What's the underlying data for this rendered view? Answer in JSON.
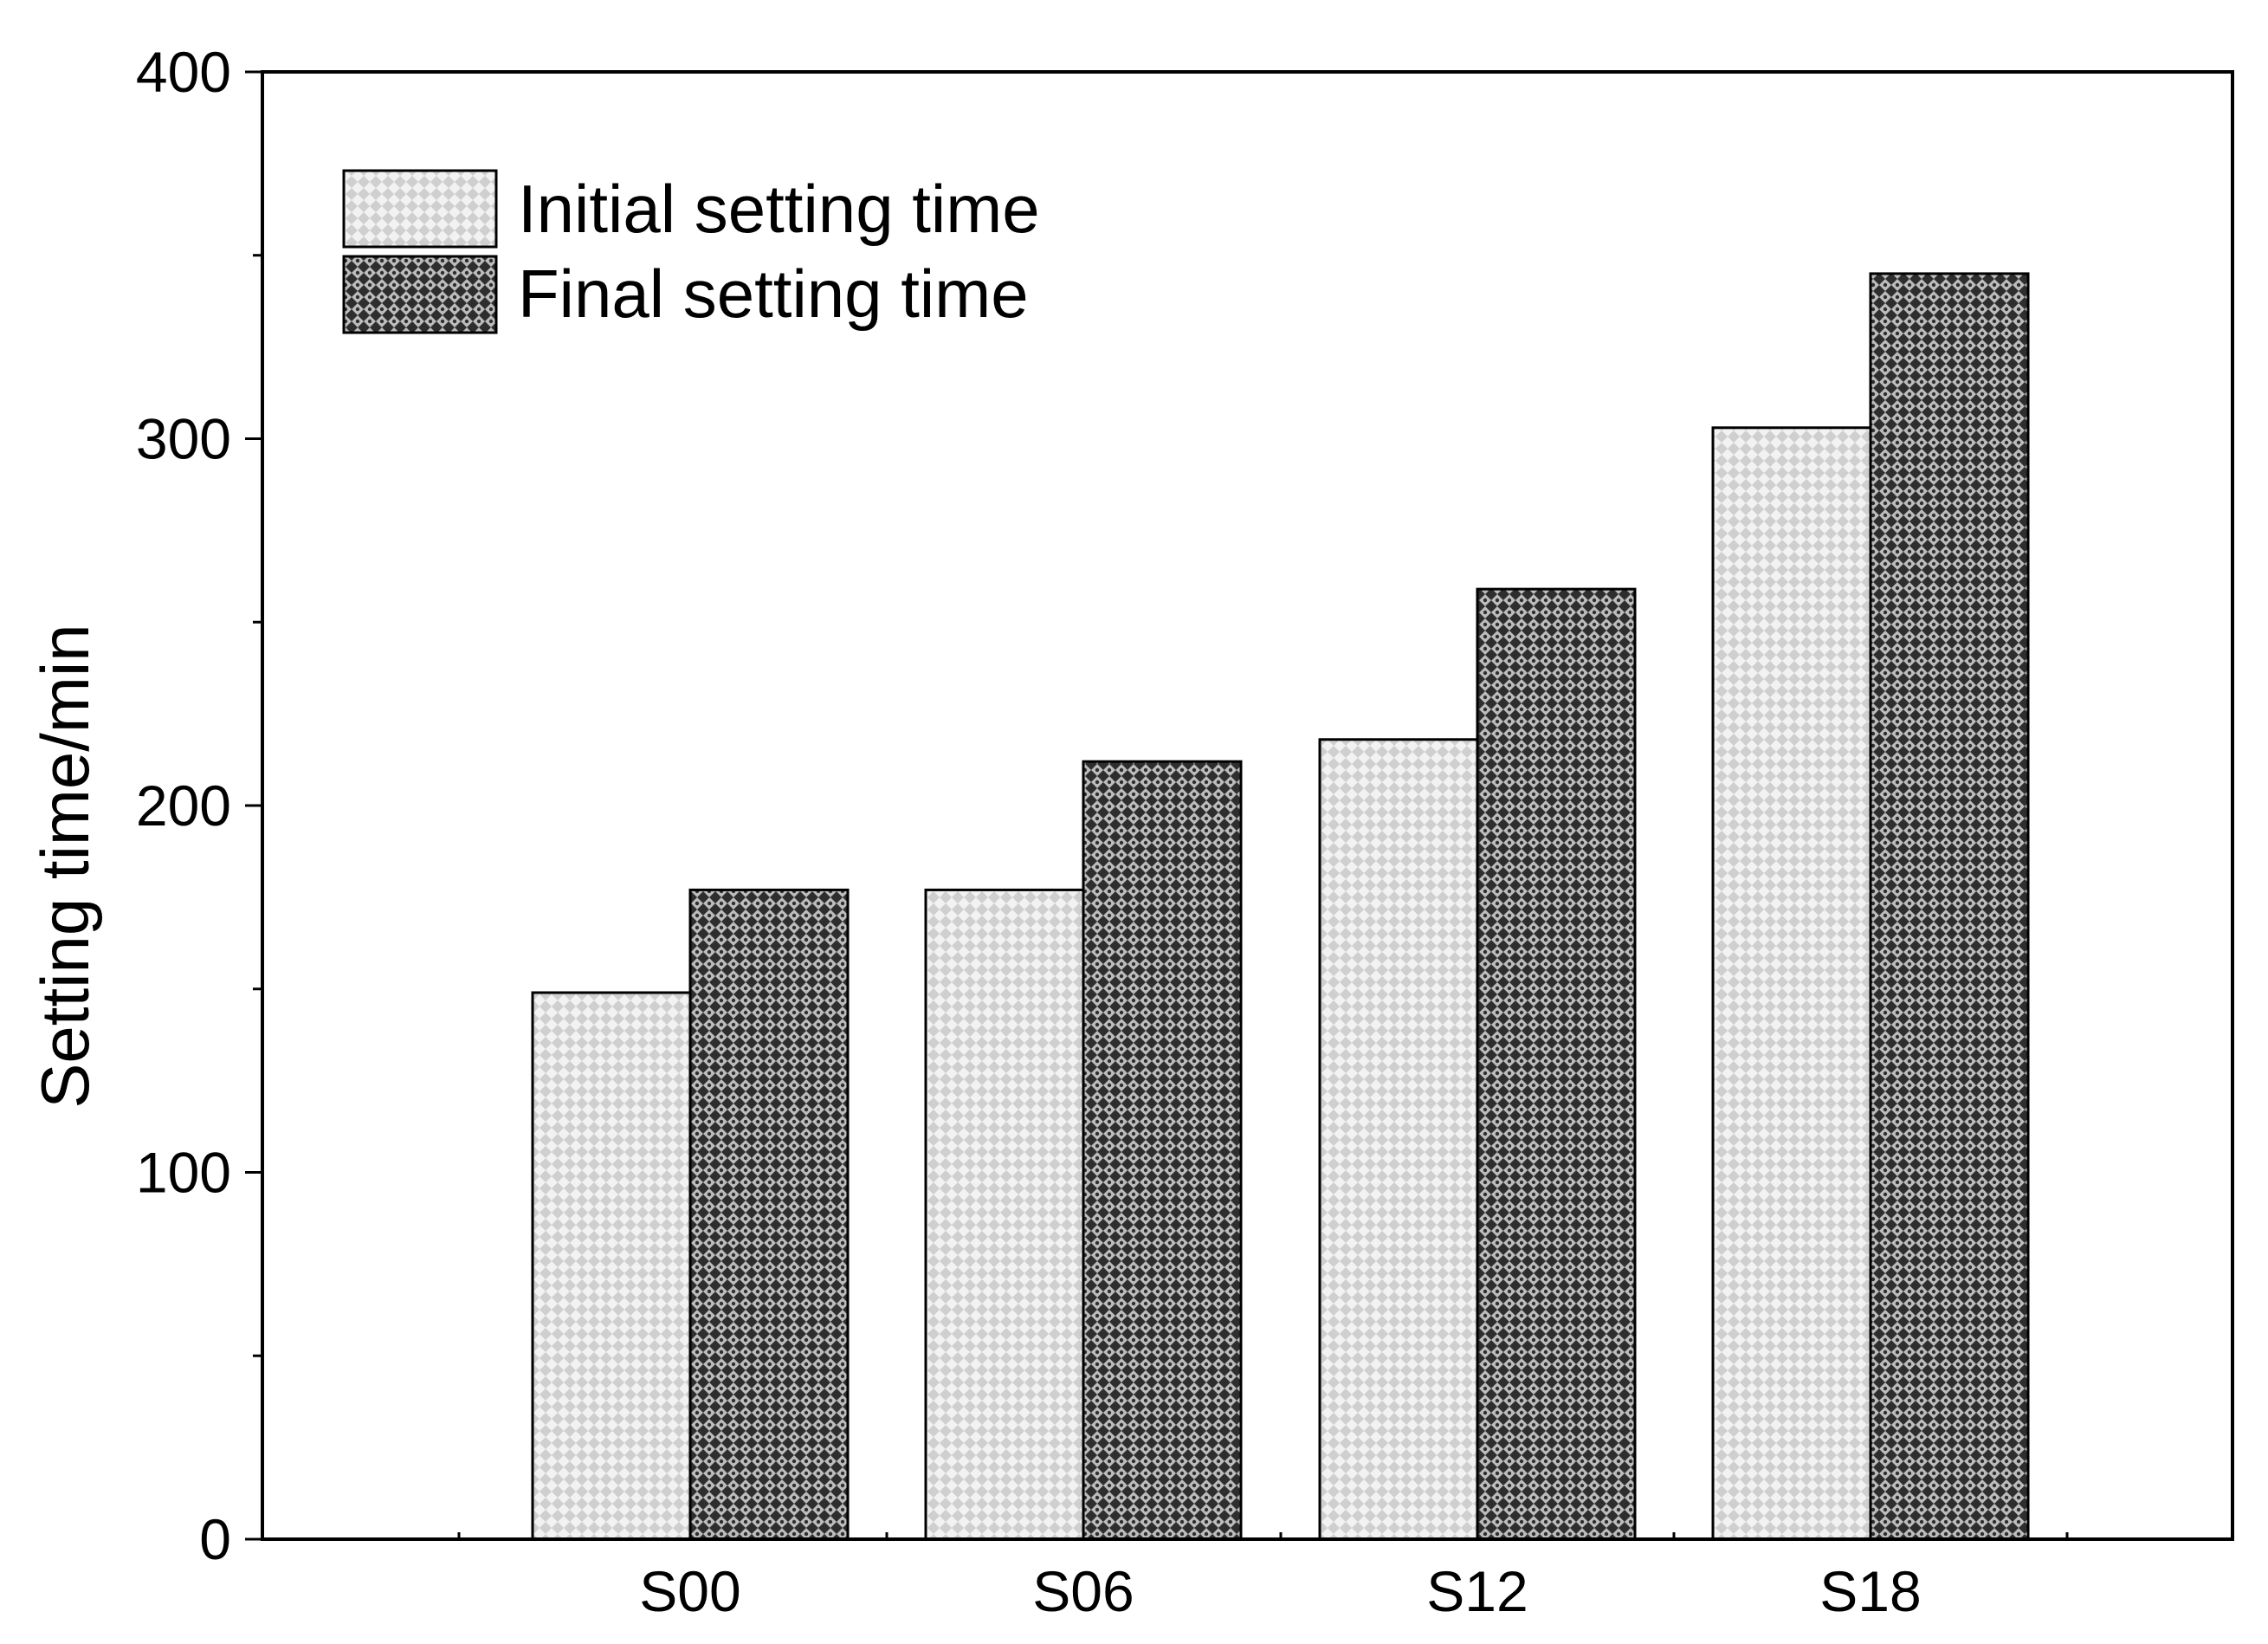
{
  "chart_data": {
    "type": "bar",
    "title": "",
    "xlabel": "",
    "ylabel": "Setting time/min",
    "ylim": [
      0,
      400
    ],
    "yticks": [
      "0",
      "100",
      "200",
      "300",
      "400"
    ],
    "categories": [
      "S00",
      "S06",
      "S12",
      "S18"
    ],
    "series": [
      {
        "name": "Initial setting time",
        "values": [
          149,
          177,
          218,
          303
        ],
        "color": "#d4d4d4"
      },
      {
        "name": "Final setting time",
        "values": [
          177,
          212,
          259,
          345
        ],
        "color": "#3a3a3a"
      }
    ],
    "grid": false,
    "legend_position": "top-left",
    "pattern": "crosshatch"
  }
}
